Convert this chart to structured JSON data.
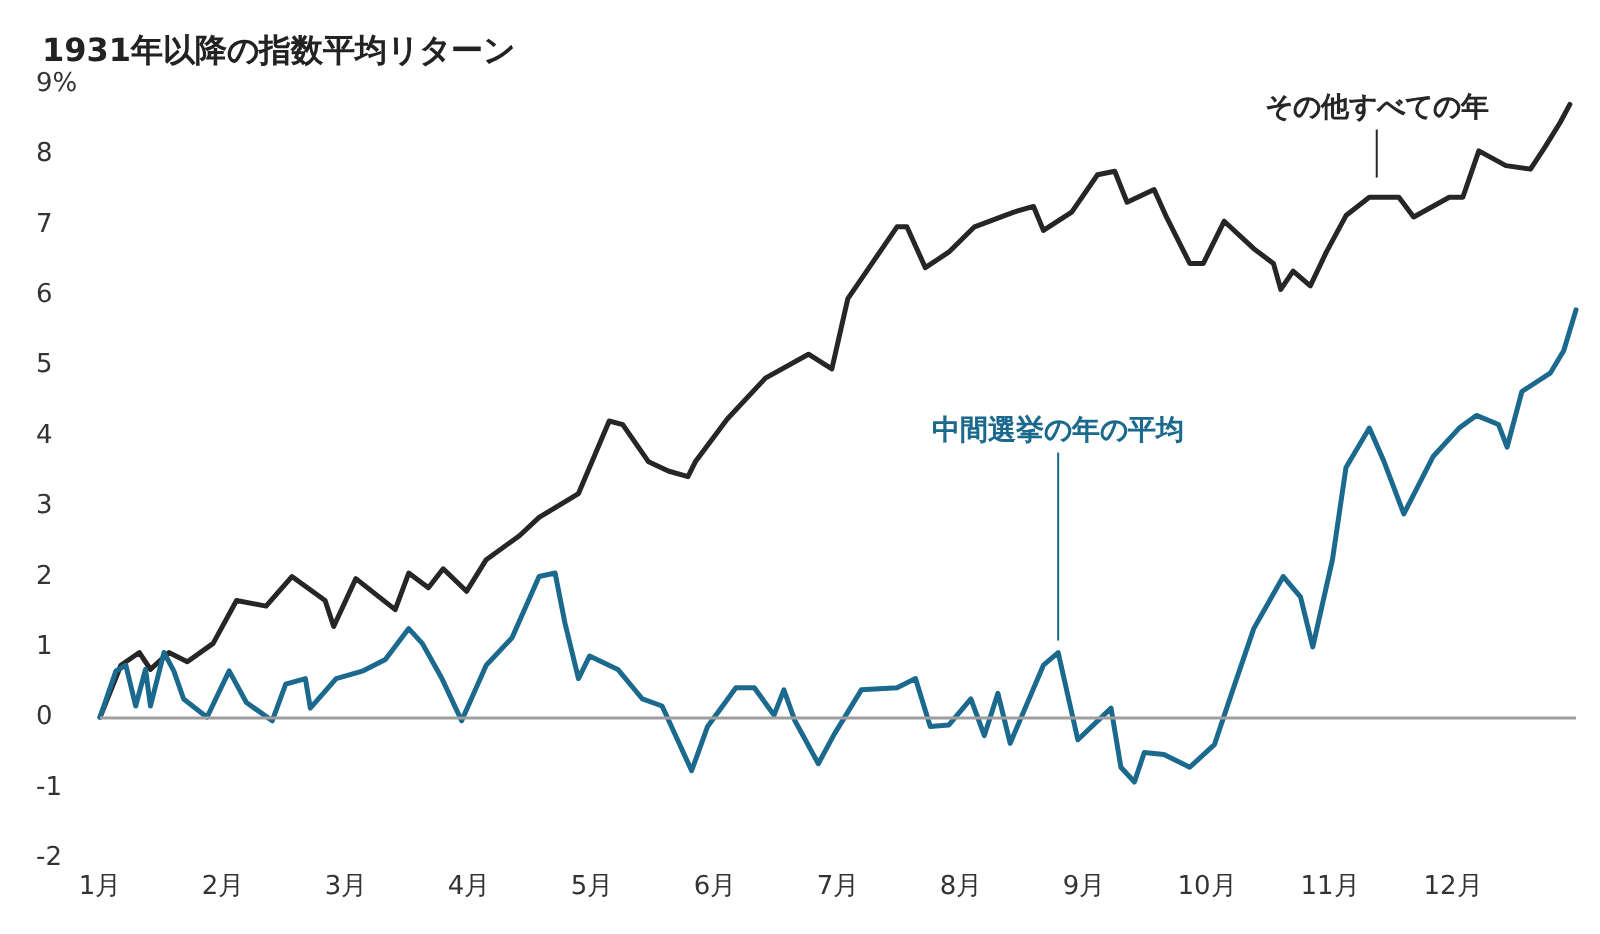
{
  "chart_data": {
    "type": "line",
    "title": "1931年以降の指数平均リターン",
    "xlim": [
      1,
      13
    ],
    "xticks": [
      {
        "value": 1,
        "label": "1月"
      },
      {
        "value": 2,
        "label": "2月"
      },
      {
        "value": 3,
        "label": "3月"
      },
      {
        "value": 4,
        "label": "4月"
      },
      {
        "value": 5,
        "label": "5月"
      },
      {
        "value": 6,
        "label": "6月"
      },
      {
        "value": 7,
        "label": "7月"
      },
      {
        "value": 8,
        "label": "8月"
      },
      {
        "value": 9,
        "label": "9月"
      },
      {
        "value": 10,
        "label": "10月"
      },
      {
        "value": 11,
        "label": "11月"
      },
      {
        "value": 12,
        "label": "12月"
      }
    ],
    "ylim": [
      -2,
      9
    ],
    "yticks": [
      -2,
      -1,
      0,
      1,
      2,
      3,
      4,
      5,
      6,
      7,
      8,
      {
        "value": 9,
        "label": "9%"
      }
    ],
    "grid": false,
    "marker": "none",
    "line_style": "solid",
    "ref_lines": [
      {
        "axis": "y",
        "value": 0,
        "color": "#9e9e9e"
      }
    ],
    "series": [
      {
        "color": "#262626",
        "x": [
          1.0,
          1.17,
          1.32,
          1.41,
          1.56,
          1.71,
          1.92,
          2.11,
          2.35,
          2.56,
          2.83,
          2.9,
          3.08,
          3.4,
          3.51,
          3.67,
          3.79,
          3.98,
          4.14,
          4.41,
          4.57,
          4.89,
          5.14,
          5.25,
          5.46,
          5.62,
          5.78,
          5.84,
          6.1,
          6.41,
          6.76,
          6.95,
          7.08,
          7.48,
          7.56,
          7.71,
          7.9,
          8.11,
          8.43,
          8.59,
          8.67,
          8.9,
          9.11,
          9.25,
          9.35,
          9.57,
          9.67,
          9.86,
          9.97,
          10.14,
          10.38,
          10.54,
          10.6,
          10.7,
          10.84,
          10.97,
          11.13,
          11.32,
          11.56,
          11.68,
          11.97,
          12.08,
          12.21,
          12.43,
          12.63,
          12.75,
          12.87,
          12.95
        ],
        "values": [
          0.0,
          0.74,
          0.92,
          0.68,
          0.92,
          0.79,
          1.05,
          1.66,
          1.58,
          2.0,
          1.66,
          1.29,
          1.97,
          1.53,
          2.05,
          1.84,
          2.11,
          1.79,
          2.24,
          2.58,
          2.84,
          3.18,
          4.21,
          4.16,
          3.63,
          3.5,
          3.42,
          3.63,
          4.24,
          4.82,
          5.16,
          4.95,
          5.95,
          6.97,
          6.97,
          6.39,
          6.61,
          6.97,
          7.18,
          7.26,
          6.92,
          7.18,
          7.71,
          7.76,
          7.32,
          7.5,
          7.11,
          6.45,
          6.45,
          7.05,
          6.66,
          6.45,
          6.08,
          6.34,
          6.13,
          6.61,
          7.13,
          7.39,
          7.39,
          7.11,
          7.39,
          7.39,
          8.05,
          7.84,
          7.79,
          8.11,
          8.45,
          8.71
        ]
      },
      {
        "color": "#1b6a8e",
        "x": [
          1.0,
          1.13,
          1.21,
          1.29,
          1.37,
          1.41,
          1.52,
          1.6,
          1.68,
          1.87,
          2.05,
          2.19,
          2.4,
          2.51,
          2.67,
          2.71,
          2.92,
          3.14,
          3.32,
          3.51,
          3.62,
          3.78,
          3.94,
          4.14,
          4.35,
          4.57,
          4.7,
          4.78,
          4.89,
          4.98,
          5.21,
          5.41,
          5.57,
          5.81,
          5.94,
          6.17,
          6.32,
          6.48,
          6.56,
          6.65,
          6.84,
          6.97,
          7.19,
          7.48,
          7.63,
          7.75,
          7.9,
          8.08,
          8.19,
          8.3,
          8.4,
          8.67,
          8.79,
          8.95,
          9.22,
          9.3,
          9.41,
          9.49,
          9.65,
          9.86,
          10.06,
          10.21,
          10.38,
          10.62,
          10.76,
          10.86,
          11.02,
          11.13,
          11.32,
          11.44,
          11.6,
          11.84,
          12.05,
          12.19,
          12.37,
          12.44,
          12.56,
          12.79,
          12.9,
          13.0
        ],
        "values": [
          0.0,
          0.66,
          0.74,
          0.16,
          0.68,
          0.16,
          0.92,
          0.66,
          0.26,
          0.0,
          0.66,
          0.21,
          -0.05,
          0.47,
          0.55,
          0.13,
          0.55,
          0.66,
          0.82,
          1.26,
          1.05,
          0.55,
          -0.05,
          0.74,
          1.13,
          2.0,
          2.05,
          1.34,
          0.55,
          0.87,
          0.68,
          0.26,
          0.16,
          -0.76,
          -0.13,
          0.42,
          0.42,
          0.03,
          0.39,
          -0.05,
          -0.66,
          -0.24,
          0.39,
          0.42,
          0.55,
          -0.13,
          -0.11,
          0.26,
          -0.26,
          0.34,
          -0.37,
          0.74,
          0.92,
          -0.32,
          0.13,
          -0.71,
          -0.92,
          -0.5,
          -0.53,
          -0.71,
          -0.39,
          0.39,
          1.26,
          2.0,
          1.71,
          1.0,
          2.24,
          3.55,
          4.11,
          3.63,
          2.89,
          3.71,
          4.11,
          4.29,
          4.16,
          3.84,
          4.63,
          4.89,
          5.21,
          5.79
        ]
      }
    ],
    "annotations": [
      {
        "text": "その他すべての年",
        "x": 11.38,
        "y": 7.5
      },
      {
        "text": "中間選挙の年の平均",
        "x": 8.79,
        "y": 0.92
      }
    ]
  }
}
